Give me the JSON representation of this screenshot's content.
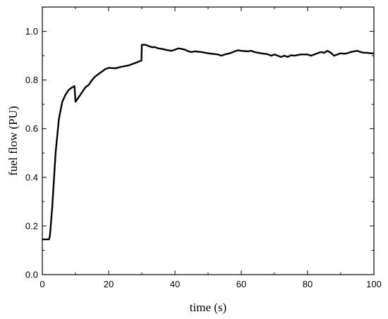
{
  "chart_data": {
    "type": "line",
    "title": "",
    "xlabel": "time (s)",
    "ylabel": "fuel flow (PU)",
    "xlim": [
      0,
      100
    ],
    "ylim": [
      0,
      1.1
    ],
    "grid": false,
    "x_ticks": [
      0,
      20,
      40,
      60,
      80,
      100
    ],
    "y_ticks": [
      0.0,
      0.2,
      0.4,
      0.6,
      0.8,
      1.0
    ],
    "x_tick_labels": [
      "0",
      "20",
      "40",
      "60",
      "80",
      "100"
    ],
    "y_tick_labels": [
      "0.0",
      "0.2",
      "0.4",
      "0.6",
      "0.8",
      "1.0"
    ],
    "series": [
      {
        "color": "#000000",
        "points": [
          [
            0,
            0.145
          ],
          [
            2.0,
            0.145
          ],
          [
            2.3,
            0.16
          ],
          [
            3.0,
            0.28
          ],
          [
            4.0,
            0.5
          ],
          [
            5.0,
            0.64
          ],
          [
            6.0,
            0.71
          ],
          [
            7.0,
            0.74
          ],
          [
            8.0,
            0.76
          ],
          [
            9.0,
            0.77
          ],
          [
            9.7,
            0.775
          ],
          [
            10.0,
            0.71
          ],
          [
            11.0,
            0.73
          ],
          [
            12.0,
            0.75
          ],
          [
            13.0,
            0.77
          ],
          [
            14.0,
            0.78
          ],
          [
            15.0,
            0.8
          ],
          [
            16.0,
            0.815
          ],
          [
            17.0,
            0.825
          ],
          [
            18.0,
            0.835
          ],
          [
            19.0,
            0.845
          ],
          [
            20.0,
            0.85
          ],
          [
            22.0,
            0.848
          ],
          [
            24.0,
            0.855
          ],
          [
            26.0,
            0.86
          ],
          [
            28.0,
            0.87
          ],
          [
            29.9,
            0.88
          ],
          [
            30.0,
            0.945
          ],
          [
            31.0,
            0.945
          ],
          [
            32.0,
            0.94
          ],
          [
            33.0,
            0.935
          ],
          [
            34.0,
            0.935
          ],
          [
            35.0,
            0.93
          ],
          [
            36.0,
            0.928
          ],
          [
            37.0,
            0.925
          ],
          [
            38.0,
            0.922
          ],
          [
            39.0,
            0.92
          ],
          [
            40.0,
            0.925
          ],
          [
            41.0,
            0.93
          ],
          [
            42.0,
            0.928
          ],
          [
            43.0,
            0.925
          ],
          [
            44.0,
            0.918
          ],
          [
            45.0,
            0.915
          ],
          [
            46.0,
            0.918
          ],
          [
            48.0,
            0.915
          ],
          [
            50.0,
            0.91
          ],
          [
            51.0,
            0.908
          ],
          [
            53.0,
            0.905
          ],
          [
            54.0,
            0.9
          ],
          [
            55.0,
            0.905
          ],
          [
            56.0,
            0.908
          ],
          [
            57.0,
            0.912
          ],
          [
            58.0,
            0.918
          ],
          [
            59.0,
            0.922
          ],
          [
            60.0,
            0.92
          ],
          [
            62.0,
            0.918
          ],
          [
            63.0,
            0.92
          ],
          [
            64.0,
            0.915
          ],
          [
            66.0,
            0.91
          ],
          [
            68.0,
            0.906
          ],
          [
            69.0,
            0.9
          ],
          [
            70.0,
            0.905
          ],
          [
            71.0,
            0.9
          ],
          [
            72.0,
            0.895
          ],
          [
            73.0,
            0.9
          ],
          [
            74.0,
            0.895
          ],
          [
            75.0,
            0.902
          ],
          [
            76.0,
            0.9
          ],
          [
            78.0,
            0.905
          ],
          [
            80.0,
            0.905
          ],
          [
            81.0,
            0.9
          ],
          [
            82.0,
            0.905
          ],
          [
            83.0,
            0.91
          ],
          [
            84.0,
            0.915
          ],
          [
            85.0,
            0.912
          ],
          [
            86.0,
            0.92
          ],
          [
            87.0,
            0.912
          ],
          [
            88.0,
            0.9
          ],
          [
            89.0,
            0.905
          ],
          [
            90.0,
            0.91
          ],
          [
            91.0,
            0.908
          ],
          [
            92.0,
            0.91
          ],
          [
            93.0,
            0.915
          ],
          [
            94.0,
            0.918
          ],
          [
            95.0,
            0.92
          ],
          [
            96.0,
            0.915
          ],
          [
            97.0,
            0.912
          ],
          [
            98.0,
            0.912
          ],
          [
            99.0,
            0.91
          ],
          [
            100.0,
            0.91
          ]
        ]
      }
    ]
  }
}
